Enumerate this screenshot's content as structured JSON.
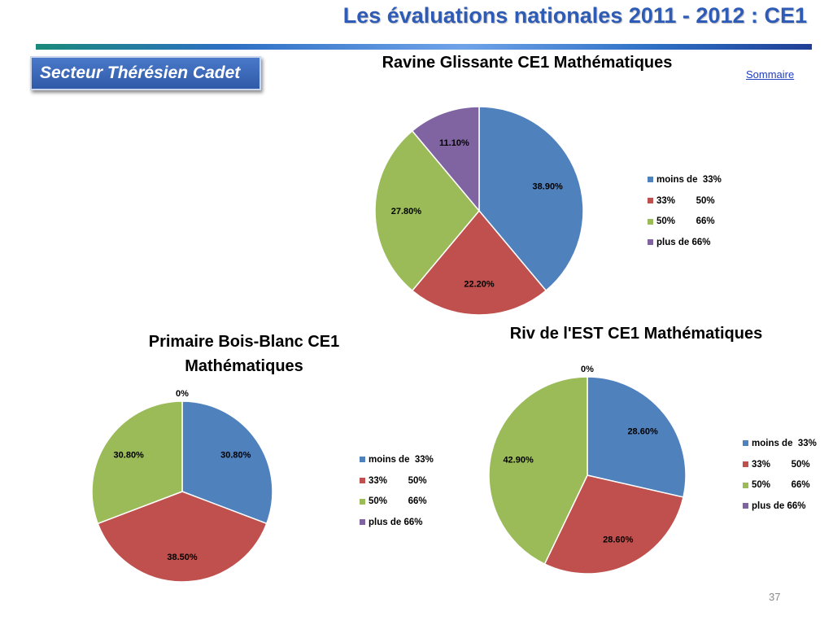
{
  "header": {
    "title": "Les évaluations nationales 2011 - 2012 : CE1",
    "sector_label": "Secteur  Thérésien Cadet",
    "sommaire_link": "Sommaire",
    "page_number": "37"
  },
  "colors": {
    "moins_33": "#4f81bd",
    "c33_50": "#c0504d",
    "c50_66": "#9bbb59",
    "plus_66": "#8064a2"
  },
  "chart_data": [
    {
      "type": "pie",
      "title": "Ravine Glissante CE1 Mathématiques",
      "categories": [
        "moins de  33%",
        "33%        50%",
        "50%        66%",
        "plus de 66%"
      ],
      "values": [
        38.9,
        22.2,
        27.8,
        11.1
      ],
      "labels": [
        "38.90%",
        "22.20%",
        "27.80%",
        "11.10%"
      ],
      "legend_position": "right"
    },
    {
      "type": "pie",
      "title": "Primaire Bois-Blanc CE1 Mathématiques",
      "title_lines": [
        "Primaire Bois-Blanc CE1",
        "Mathématiques"
      ],
      "categories": [
        "moins de  33%",
        "33%        50%",
        "50%        66%",
        "plus de 66%"
      ],
      "values": [
        30.8,
        38.5,
        30.8,
        0
      ],
      "labels": [
        "30.80%",
        "38.50%",
        "30.80%",
        "0%"
      ],
      "legend_position": "right"
    },
    {
      "type": "pie",
      "title": "Riv de l'EST CE1 Mathématiques",
      "categories": [
        "moins de  33%",
        "33%        50%",
        "50%        66%",
        "plus de 66%"
      ],
      "values": [
        28.6,
        28.6,
        42.9,
        0
      ],
      "labels": [
        "28.60%",
        "28.60%",
        "42.90%",
        "0%"
      ],
      "legend_position": "right"
    }
  ]
}
